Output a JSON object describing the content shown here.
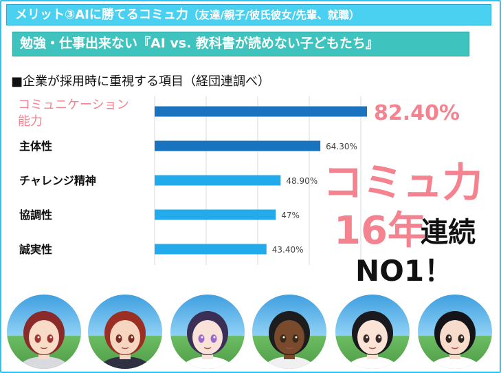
{
  "header": {
    "banner1_main": "メリット③AIに勝てるコミュ力",
    "banner1_sub": "（友達/親子/彼氏彼女/先輩、就職）",
    "banner2": "勉強・仕事出来ない『AI vs. 教科書が読めない子どもたち』"
  },
  "chart_data": {
    "type": "bar",
    "orientation": "horizontal",
    "title": "■企業が採用時に重視する項目（経団連調べ）",
    "categories": [
      "コミュニケーション能力",
      "主体性",
      "チャレンジ精神",
      "協調性",
      "誠実性"
    ],
    "category_lines": [
      [
        "コミュニケーション",
        "能力"
      ],
      [
        "主体性"
      ],
      [
        "チャレンジ精神"
      ],
      [
        "協調性"
      ],
      [
        "誠実性"
      ]
    ],
    "values": [
      82.4,
      64.3,
      48.9,
      47,
      43.4
    ],
    "value_labels": [
      "82.40%",
      "64.30%",
      "48.90%",
      "47%",
      "43.40%"
    ],
    "xlim": [
      0,
      100
    ],
    "grid": true,
    "colors": {
      "top_bar": "#1a73be",
      "second_bar": "#1a73be",
      "other_bars": "#22aaeb",
      "highlight_label": "#f4838f"
    }
  },
  "callout": {
    "line1": "コミュ力",
    "line2_years": "16年",
    "line2_suffix": "連続",
    "line3": "NO1！"
  },
  "avatars": [
    {
      "name": "girl-red-twin-braids-icon",
      "hair": "#8a2a2a",
      "skin": "#f8dcc8",
      "eye": "#a0342e",
      "outfit": "#d9d9e0"
    },
    {
      "name": "boy-red-hair-icon",
      "hair": "#9c2f24",
      "skin": "#f6d6c0",
      "eye": "#7a2a1f",
      "outfit": "#2f3142"
    },
    {
      "name": "girl-purple-hair-icon",
      "hair": "#3b2f55",
      "skin": "#f9e2d8",
      "eye": "#9b6acb",
      "outfit": "#ffffff"
    },
    {
      "name": "boy-dark-skin-icon",
      "hair": "#1d1d1f",
      "skin": "#7a4a2c",
      "eye": "#3a2a1a",
      "outfit": "#f0f0f0"
    },
    {
      "name": "girl-black-hair-red-ribbon-icon",
      "hair": "#1a1a1e",
      "skin": "#fbe3d6",
      "eye": "#3b2a2a",
      "outfit": "#ffffff"
    },
    {
      "name": "boy-black-hair-icon",
      "hair": "#141418",
      "skin": "#f7dccb",
      "eye": "#2e2520",
      "outfit": "#ffffff"
    }
  ]
}
